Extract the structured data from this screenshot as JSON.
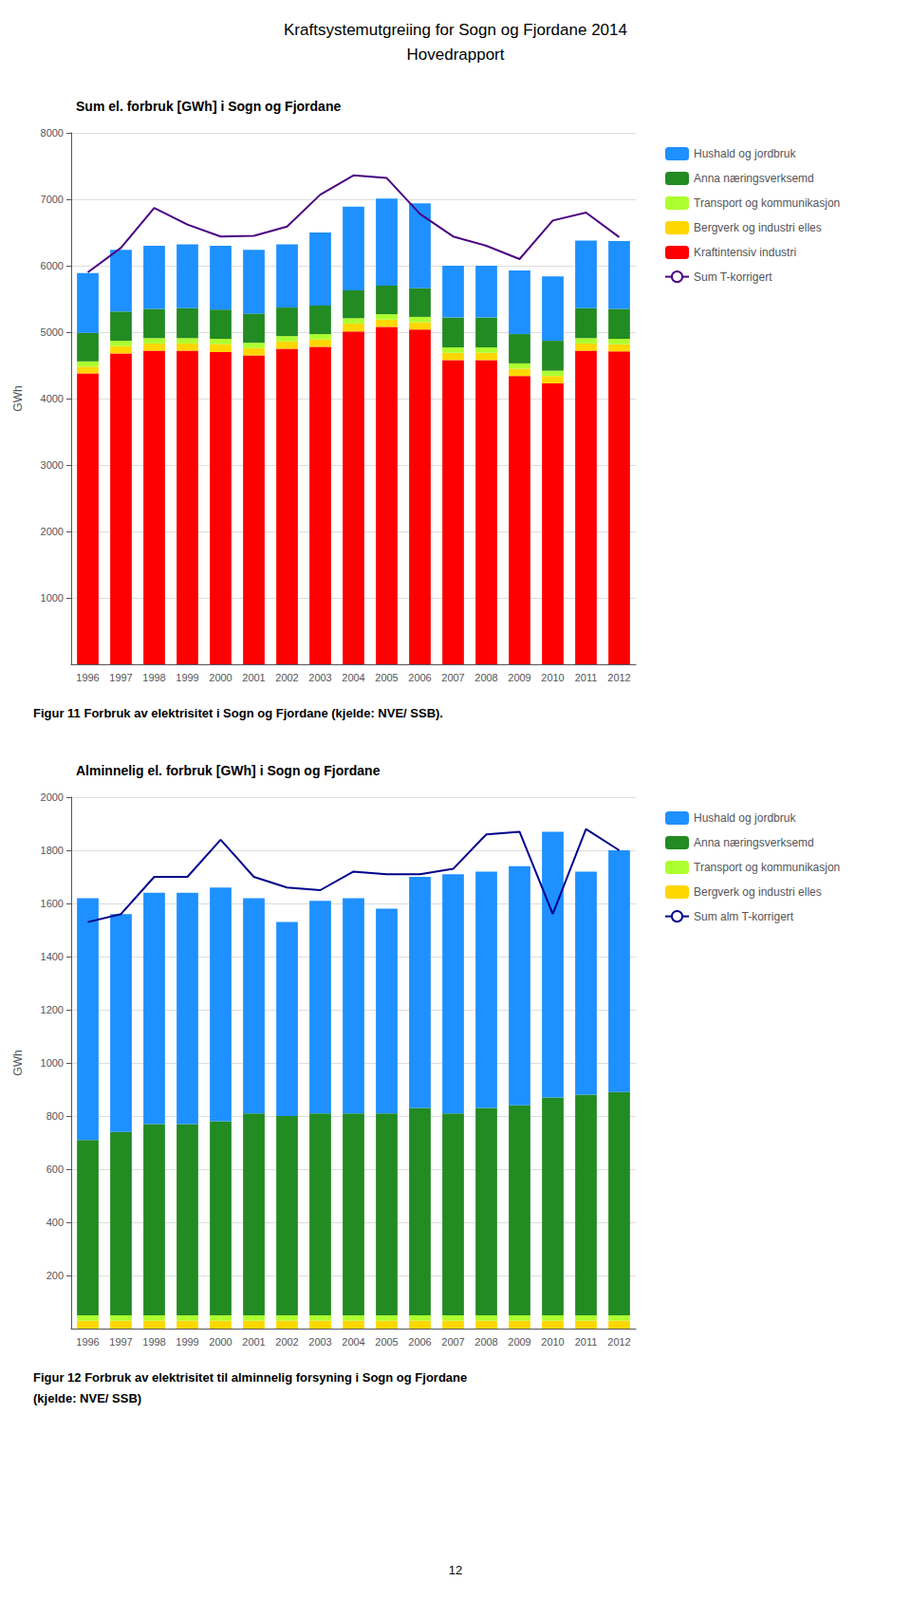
{
  "title": "Kraftsystemutgreiing for Sogn og Fjordane 2014",
  "subtitle": "Hovedrapport",
  "annotations": [
    "12"
  ],
  "chart_data": [
    {
      "type": "bar",
      "stacked": true,
      "title": "Sum el. forbruk [GWh] i Sogn og Fjordane",
      "ylabel": "GWh",
      "annotations": [
        "Figur 11 Forbruk av elektrisitet i Sogn og Fjordane (kjelde: NVE/ SSB)."
      ],
      "categories": [
        1996,
        1997,
        1998,
        1999,
        2000,
        2001,
        2002,
        2003,
        2004,
        2005,
        2006,
        2007,
        2008,
        2009,
        2010,
        2011,
        2012
      ],
      "ylim": [
        0,
        8000
      ],
      "yticks": [
        1000,
        2000,
        3000,
        4000,
        5000,
        6000,
        7000,
        8000
      ],
      "grid": true,
      "legend": "right",
      "series": [
        {
          "name": "Kraftintensiv industri",
          "type": "bar",
          "color": "#FF0000",
          "values": [
            4380,
            4680,
            4720,
            4720,
            4700,
            4650,
            4750,
            4780,
            5010,
            5080,
            5040,
            4580,
            4580,
            4340,
            4230,
            4720,
            4710
          ]
        },
        {
          "name": "Bergverk og industri elles",
          "type": "bar",
          "color": "#FFD700",
          "values": [
            100,
            110,
            110,
            110,
            120,
            110,
            110,
            110,
            120,
            110,
            110,
            110,
            110,
            110,
            110,
            110,
            110
          ]
        },
        {
          "name": "Transport og kommunikasjon",
          "type": "bar",
          "color": "#ADFF2F",
          "values": [
            80,
            80,
            80,
            80,
            80,
            80,
            80,
            80,
            80,
            80,
            80,
            80,
            80,
            80,
            80,
            80,
            80
          ]
        },
        {
          "name": "Anna næringsverksemd",
          "type": "bar",
          "color": "#228B22",
          "values": [
            430,
            440,
            440,
            450,
            440,
            440,
            430,
            430,
            420,
            430,
            430,
            450,
            450,
            440,
            450,
            450,
            450
          ]
        },
        {
          "name": "Hushald og jordbruk",
          "type": "bar",
          "color": "#1E90FF",
          "values": [
            900,
            930,
            950,
            960,
            960,
            960,
            950,
            1100,
            1260,
            1310,
            1280,
            780,
            780,
            960,
            970,
            1020,
            1020
          ]
        },
        {
          "name": "Sum T-korrigert",
          "type": "line",
          "color": "#4B0082",
          "values": [
            5900,
            6270,
            6870,
            6620,
            6440,
            6450,
            6590,
            7070,
            7360,
            7320,
            6780,
            6440,
            6300,
            6100,
            6680,
            6800,
            6430
          ]
        }
      ]
    },
    {
      "type": "bar",
      "stacked": true,
      "title": "Alminnelig el. forbruk [GWh] i Sogn og Fjordane",
      "ylabel": "GWh",
      "annotations": [
        "Figur 12 Forbruk av elektrisitet til alminnelig forsyning i Sogn og Fjordane",
        "(kjelde: NVE/ SSB)"
      ],
      "categories": [
        1996,
        1997,
        1998,
        1999,
        2000,
        2001,
        2002,
        2003,
        2004,
        2005,
        2006,
        2007,
        2008,
        2009,
        2010,
        2011,
        2012
      ],
      "ylim": [
        0,
        2000
      ],
      "yticks": [
        200,
        400,
        600,
        800,
        1000,
        1200,
        1400,
        1600,
        1800,
        2000
      ],
      "grid": true,
      "legend": "right",
      "series": [
        {
          "name": "Bergverk og industri elles",
          "type": "bar",
          "color": "#FFD700",
          "values": [
            30,
            30,
            30,
            30,
            30,
            30,
            30,
            30,
            30,
            30,
            30,
            30,
            30,
            30,
            30,
            30,
            30
          ]
        },
        {
          "name": "Transport og kommunikasjon",
          "type": "bar",
          "color": "#ADFF2F",
          "values": [
            20,
            20,
            20,
            20,
            20,
            20,
            20,
            20,
            20,
            20,
            20,
            20,
            20,
            20,
            20,
            20,
            20
          ]
        },
        {
          "name": "Anna næringsverksemd",
          "type": "bar",
          "color": "#228B22",
          "values": [
            660,
            690,
            720,
            720,
            730,
            760,
            750,
            760,
            760,
            760,
            780,
            760,
            780,
            790,
            820,
            830,
            840
          ]
        },
        {
          "name": "Hushald og jordbruk",
          "type": "bar",
          "color": "#1E90FF",
          "values": [
            910,
            820,
            870,
            870,
            880,
            810,
            730,
            800,
            810,
            770,
            870,
            900,
            890,
            900,
            1000,
            840,
            910
          ]
        },
        {
          "name": "Sum alm T-korrigert",
          "type": "line",
          "color": "#00008B",
          "values": [
            1530,
            1560,
            1700,
            1700,
            1840,
            1700,
            1660,
            1650,
            1720,
            1710,
            1710,
            1730,
            1860,
            1870,
            1560,
            1880,
            1800
          ]
        }
      ]
    }
  ]
}
